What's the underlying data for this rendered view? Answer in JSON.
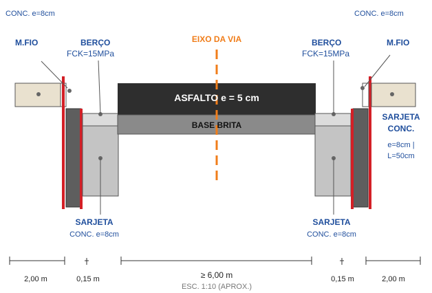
{
  "labels": {
    "conc_left_top": "CONC. e=8cm",
    "conc_right_top": "CONC. e=8cm",
    "mfio_left": "M.FIO",
    "mfio_right": "M.FIO",
    "berco_left_title": "BERÇO",
    "berco_left_fck": "FCK=15MPa",
    "berco_right_title": "BERÇO",
    "berco_right_fck": "FCK=15MPa",
    "eixo": "EIXO DA VIA",
    "asfalto": "ASFALTO e = 5 cm",
    "base": "BASE BRITA",
    "sarjeta_right_title": "SARJETA",
    "sarjeta_right_conc": "CONC.",
    "sarjeta_right_e": "e=8cm |",
    "sarjeta_right_l": "L=50cm",
    "sarjeta_left_bottom_title": "SARJETA",
    "sarjeta_left_bottom_conc": "CONC. e=8cm",
    "sarjeta_right_bottom_title": "SARJETA",
    "sarjeta_right_bottom_conc": "CONC. e=8cm"
  },
  "dimensions": {
    "left_outer": "2,00 m",
    "left_inner": "0,15 m",
    "center": "≥ 6,00 m",
    "right_inner": "0,15 m",
    "right_outer": "2,00 m",
    "scale": "ESC. 1:10 (APROX.)"
  },
  "colors": {
    "label_blue": "#1f4e9c",
    "eixo_orange": "#f07d1a",
    "curb_red": "#d31f26",
    "asphalt": "#2e2e2e",
    "base": "#8a8a8a",
    "curb_dark": "#5e5e5e",
    "gutter_light": "#c4c4c4",
    "mfio_beige": "#e9e1cf"
  }
}
